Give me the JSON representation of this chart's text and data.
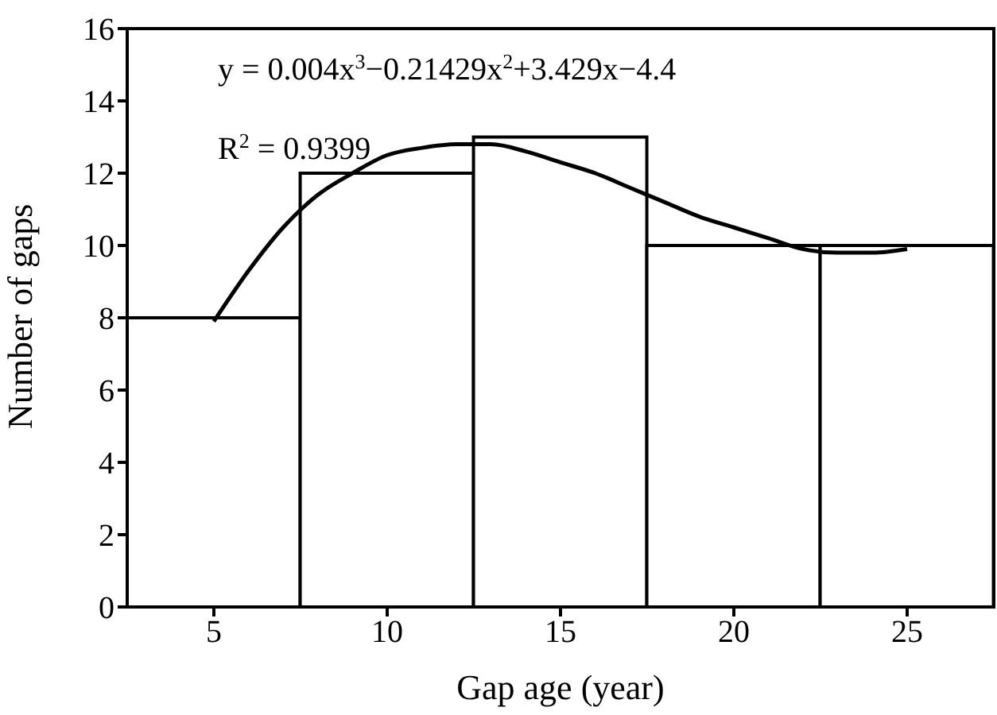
{
  "chart_data": {
    "type": "histogram",
    "xlabel": "Gap age (year)",
    "ylabel": "Number of gaps",
    "bins": [
      2.5,
      7.5,
      12.5,
      17.5,
      22.5,
      27.5
    ],
    "values": [
      8,
      12,
      13,
      10,
      10
    ],
    "color": "#ffffff",
    "series": [
      {
        "type": "line",
        "color": "#000000",
        "x": [
          5,
          6,
          7,
          8,
          9,
          10,
          11,
          12,
          13,
          14,
          15,
          16,
          17,
          18,
          19,
          20,
          21,
          22,
          23,
          24,
          25
        ],
        "values": [
          7.9,
          9.3,
          10.5,
          11.4,
          12.0,
          12.5,
          12.7,
          12.8,
          12.8,
          12.6,
          12.3,
          12.0,
          11.6,
          11.2,
          10.8,
          10.5,
          10.2,
          9.9,
          9.8,
          9.8,
          9.9
        ]
      }
    ],
    "xlim": [
      2.5,
      27.5
    ],
    "xticks": [
      5,
      10,
      15,
      20,
      25
    ],
    "ylim": [
      0,
      16
    ],
    "yticks": [
      0,
      2,
      4,
      6,
      8,
      10,
      12,
      14,
      16
    ],
    "grid": false,
    "legend": false,
    "annotations": [
      "y = 0.004x$^{3}$−0.21429x$^{2}$+3.429x−4.4",
      "R$^{2}$ = 0.9399"
    ]
  }
}
